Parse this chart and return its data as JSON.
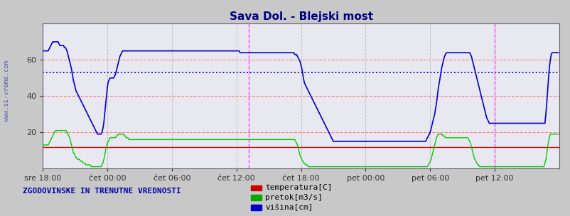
{
  "title": "Sava Dol. - Blejski most",
  "title_color": "#000080",
  "bg_color": "#c8c8c8",
  "plot_bg_color": "#e8e8f0",
  "yticks": [
    20,
    40,
    60
  ],
  "ylim": [
    0,
    80
  ],
  "n_points": 576,
  "xtick_labels": [
    "sre 18:00",
    "čet 00:00",
    "čet 06:00",
    "čet 12:00",
    "čet 18:00",
    "pet 00:00",
    "pet 06:00",
    "pet 12:00"
  ],
  "xtick_positions": [
    0,
    72,
    144,
    216,
    288,
    360,
    432,
    504
  ],
  "grid_h_color": "#ff8080",
  "grid_v_color": "#c0c0c0",
  "avg_line_y": 53,
  "avg_line_color": "#0000bb",
  "vline1_x": 230,
  "vline2_x": 504,
  "vline_color": "#ff44ff",
  "sidebar_text": "www.si-vreme.com",
  "sidebar_color": "#4444aa",
  "legend_text": "ZGODOVINSKE IN TRENUTNE VREDNOSTI",
  "legend_text_color": "#0000aa",
  "legend_items": [
    "temperatura[C]",
    "pretok[m3/s]",
    "višina[cm]"
  ],
  "legend_colors": [
    "#cc0000",
    "#00aa00",
    "#0000cc"
  ],
  "temp_color": "#cc0000",
  "pretok_color": "#00cc00",
  "visina_color": "#0000cc",
  "temp_val": 12,
  "visina_data": [
    65,
    65,
    65,
    65,
    65,
    65,
    65,
    66,
    67,
    68,
    69,
    70,
    70,
    70,
    70,
    70,
    70,
    70,
    69,
    68,
    68,
    68,
    68,
    68,
    67,
    67,
    66,
    65,
    63,
    61,
    59,
    57,
    55,
    52,
    49,
    47,
    45,
    43,
    42,
    41,
    40,
    39,
    38,
    37,
    36,
    35,
    34,
    33,
    32,
    31,
    30,
    29,
    28,
    27,
    26,
    25,
    24,
    23,
    22,
    21,
    20,
    19,
    19,
    19,
    19,
    19,
    20,
    22,
    25,
    30,
    35,
    40,
    45,
    48,
    49,
    50,
    50,
    50,
    50,
    50,
    51,
    52,
    54,
    56,
    58,
    60,
    62,
    63,
    64,
    65,
    65,
    65,
    65,
    65,
    65,
    65,
    65,
    65,
    65,
    65,
    65,
    65,
    65,
    65,
    65,
    65,
    65,
    65,
    65,
    65,
    65,
    65,
    65,
    65,
    65,
    65,
    65,
    65,
    65,
    65,
    65,
    65,
    65,
    65,
    65,
    65,
    65,
    65,
    65,
    65,
    65,
    65,
    65,
    65,
    65,
    65,
    65,
    65,
    65,
    65,
    65,
    65,
    65,
    65,
    65,
    65,
    65,
    65,
    65,
    65,
    65,
    65,
    65,
    65,
    65,
    65,
    65,
    65,
    65,
    65,
    65,
    65,
    65,
    65,
    65,
    65,
    65,
    65,
    65,
    65,
    65,
    65,
    65,
    65,
    65,
    65,
    65,
    65,
    65,
    65,
    65,
    65,
    65,
    65,
    65,
    65,
    65,
    65,
    65,
    65,
    65,
    65,
    65,
    65,
    65,
    65,
    65,
    65,
    65,
    65,
    65,
    65,
    65,
    65,
    65,
    65,
    65,
    65,
    65,
    65,
    65,
    65,
    65,
    65,
    65,
    65,
    65,
    65,
    65,
    65,
    64,
    64,
    64,
    64,
    64,
    64,
    64,
    64,
    64,
    64,
    64,
    64,
    64,
    64,
    64,
    64,
    64,
    64,
    64,
    64,
    64,
    64,
    64,
    64,
    64,
    64,
    64,
    64,
    64,
    64,
    64,
    64,
    64,
    64,
    64,
    64,
    64,
    64,
    64,
    64,
    64,
    64,
    64,
    64,
    64,
    64,
    64,
    64,
    64,
    64,
    64,
    64,
    64,
    64,
    64,
    64,
    64,
    64,
    64,
    64,
    64,
    63,
    63,
    63,
    62,
    61,
    60,
    59,
    57,
    55,
    52,
    49,
    47,
    46,
    45,
    44,
    43,
    42,
    41,
    40,
    39,
    38,
    37,
    36,
    35,
    34,
    33,
    32,
    31,
    30,
    29,
    28,
    27,
    26,
    25,
    24,
    23,
    22,
    21,
    20,
    19,
    18,
    17,
    16,
    15,
    15,
    15,
    15,
    15,
    15,
    15,
    15,
    15,
    15,
    15,
    15,
    15,
    15,
    15,
    15,
    15,
    15,
    15,
    15,
    15,
    15,
    15,
    15,
    15,
    15,
    15,
    15,
    15,
    15,
    15,
    15,
    15,
    15,
    15,
    15,
    15,
    15,
    15,
    15,
    15,
    15,
    15,
    15,
    15,
    15,
    15,
    15,
    15,
    15,
    15,
    15,
    15,
    15,
    15,
    15,
    15,
    15,
    15,
    15,
    15,
    15,
    15,
    15,
    15,
    15,
    15,
    15,
    15,
    15,
    15,
    15,
    15,
    15,
    15,
    15,
    15,
    15,
    15,
    15,
    15,
    15,
    15,
    15,
    15,
    15,
    15,
    15,
    15,
    15,
    15,
    15,
    15,
    15,
    15,
    15,
    15,
    15,
    15,
    15,
    15,
    15,
    15,
    15,
    16,
    17,
    18,
    19,
    20,
    22,
    24,
    26,
    28,
    30,
    33,
    36,
    40,
    44,
    47,
    50,
    53,
    56,
    58,
    60,
    62,
    63,
    64,
    64,
    64,
    64,
    64,
    64,
    64,
    64,
    64,
    64,
    64,
    64,
    64,
    64,
    64,
    64,
    64,
    64,
    64,
    64,
    64,
    64,
    64,
    64,
    64,
    64,
    64,
    63,
    62,
    60,
    58,
    56,
    54,
    52,
    50,
    48,
    46,
    44,
    42,
    40,
    38,
    36,
    34,
    32,
    30,
    28,
    27,
    26,
    25,
    25,
    25,
    25,
    25,
    25,
    25,
    25,
    25,
    25,
    25,
    25,
    25,
    25,
    25,
    25,
    25,
    25,
    25,
    25,
    25,
    25,
    25,
    25,
    25,
    25,
    25,
    25,
    25,
    25,
    25,
    25,
    25,
    25,
    25,
    25,
    25,
    25,
    25,
    25,
    25,
    25,
    25,
    25,
    25,
    25,
    25,
    25,
    25,
    25,
    25,
    25,
    25,
    25,
    25,
    25,
    25,
    25,
    25,
    25,
    25,
    25,
    25,
    30,
    36,
    43,
    50,
    56,
    60,
    63,
    64,
    64,
    64,
    64,
    64,
    64,
    64,
    64,
    64,
    64,
    64,
    64,
    64,
    64
  ],
  "pretok_data": [
    13,
    13,
    13,
    13,
    13,
    13,
    13,
    14,
    15,
    16,
    17,
    18,
    19,
    20,
    21,
    21,
    21,
    21,
    21,
    21,
    21,
    21,
    21,
    21,
    21,
    21,
    21,
    20,
    19,
    18,
    17,
    15,
    13,
    11,
    9,
    8,
    7,
    6,
    6,
    5,
    5,
    5,
    4,
    4,
    4,
    3,
    3,
    3,
    2,
    2,
    2,
    2,
    2,
    2,
    1,
    1,
    1,
    1,
    1,
    1,
    1,
    1,
    1,
    1,
    1,
    1,
    2,
    3,
    5,
    7,
    10,
    12,
    14,
    15,
    16,
    17,
    17,
    17,
    17,
    17,
    17,
    17,
    18,
    18,
    19,
    19,
    19,
    19,
    19,
    19,
    19,
    18,
    18,
    17,
    17,
    17,
    16,
    16,
    16,
    16,
    16,
    16,
    16,
    16,
    16,
    16,
    16,
    16,
    16,
    16,
    16,
    16,
    16,
    16,
    16,
    16,
    16,
    16,
    16,
    16,
    16,
    16,
    16,
    16,
    16,
    16,
    16,
    16,
    16,
    16,
    16,
    16,
    16,
    16,
    16,
    16,
    16,
    16,
    16,
    16,
    16,
    16,
    16,
    16,
    16,
    16,
    16,
    16,
    16,
    16,
    16,
    16,
    16,
    16,
    16,
    16,
    16,
    16,
    16,
    16,
    16,
    16,
    16,
    16,
    16,
    16,
    16,
    16,
    16,
    16,
    16,
    16,
    16,
    16,
    16,
    16,
    16,
    16,
    16,
    16,
    16,
    16,
    16,
    16,
    16,
    16,
    16,
    16,
    16,
    16,
    16,
    16,
    16,
    16,
    16,
    16,
    16,
    16,
    16,
    16,
    16,
    16,
    16,
    16,
    16,
    16,
    16,
    16,
    16,
    16,
    16,
    16,
    16,
    16,
    16,
    16,
    16,
    16,
    16,
    16,
    16,
    16,
    16,
    16,
    16,
    16,
    16,
    16,
    16,
    16,
    16,
    16,
    16,
    16,
    16,
    16,
    16,
    16,
    16,
    16,
    16,
    16,
    16,
    16,
    16,
    16,
    16,
    16,
    16,
    16,
    16,
    16,
    16,
    16,
    16,
    16,
    16,
    16,
    16,
    16,
    16,
    16,
    16,
    16,
    16,
    16,
    16,
    16,
    16,
    16,
    16,
    16,
    16,
    16,
    16,
    16,
    16,
    16,
    16,
    16,
    16,
    16,
    15,
    14,
    13,
    11,
    9,
    7,
    6,
    5,
    4,
    3,
    3,
    2,
    2,
    2,
    1,
    1,
    1,
    1,
    1,
    1,
    1,
    1,
    1,
    1,
    1,
    1,
    1,
    1,
    1,
    1,
    1,
    1,
    1,
    1,
    1,
    1,
    1,
    1,
    1,
    1,
    1,
    1,
    1,
    1,
    1,
    1,
    1,
    1,
    1,
    1,
    1,
    1,
    1,
    1,
    1,
    1,
    1,
    1,
    1,
    1,
    1,
    1,
    1,
    1,
    1,
    1,
    1,
    1,
    1,
    1,
    1,
    1,
    1,
    1,
    1,
    1,
    1,
    1,
    1,
    1,
    1,
    1,
    1,
    1,
    1,
    1,
    1,
    1,
    1,
    1,
    1,
    1,
    1,
    1,
    1,
    1,
    1,
    1,
    1,
    1,
    1,
    1,
    1,
    1,
    1,
    1,
    1,
    1,
    1,
    1,
    1,
    1,
    1,
    1,
    1,
    1,
    1,
    1,
    1,
    1,
    1,
    1,
    1,
    1,
    1,
    1,
    1,
    1,
    1,
    1,
    1,
    1,
    1,
    1,
    1,
    1,
    1,
    1,
    1,
    1,
    1,
    1,
    1,
    1,
    1,
    1,
    1,
    1,
    2,
    3,
    4,
    5,
    7,
    9,
    11,
    13,
    15,
    17,
    18,
    19,
    19,
    19,
    19,
    19,
    18,
    18,
    18,
    17,
    17,
    17,
    17,
    17,
    17,
    17,
    17,
    17,
    17,
    17,
    17,
    17,
    17,
    17,
    17,
    17,
    17,
    17,
    17,
    17,
    17,
    17,
    17,
    17,
    17,
    16,
    15,
    14,
    12,
    10,
    8,
    6,
    5,
    4,
    3,
    2,
    2,
    1,
    1,
    1,
    1,
    1,
    1,
    1,
    1,
    1,
    1,
    1,
    1,
    1,
    1,
    1,
    1,
    1,
    1,
    1,
    1,
    1,
    1,
    1,
    1,
    1,
    1,
    1,
    1,
    1,
    1,
    1,
    1,
    1,
    1,
    1,
    1,
    1,
    1,
    1,
    1,
    1,
    1,
    1,
    1,
    1,
    1,
    1,
    1,
    1,
    1,
    1,
    1,
    1,
    1,
    1,
    1,
    1,
    1,
    1,
    1,
    1,
    1,
    1,
    1,
    1,
    1,
    1,
    1,
    1,
    1,
    1,
    1,
    1,
    3,
    5,
    8,
    12,
    15,
    17,
    19,
    19,
    19,
    19,
    19,
    19,
    19,
    19,
    19,
    19,
    19,
    19,
    19,
    19,
    19,
    19
  ]
}
